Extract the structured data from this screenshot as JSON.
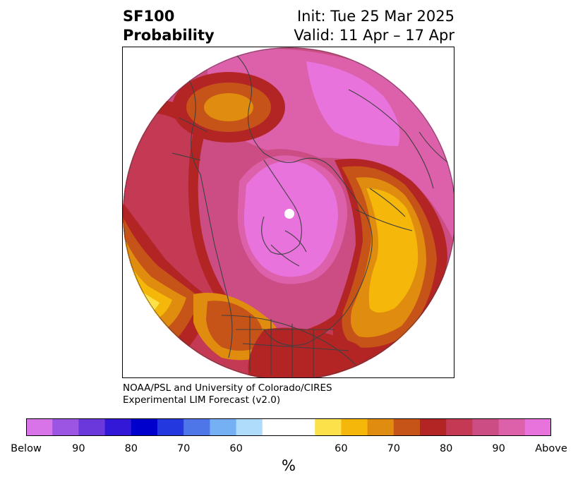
{
  "title": {
    "line1": "SF100",
    "line2": "Probability",
    "init": "Init: Tue 25 Mar 2025",
    "valid": "Valid: 11 Apr – 17 Apr"
  },
  "credit": {
    "line1": "NOAA/PSL and University of Colorado/CIRES",
    "line2": "Experimental LIM Forecast (v2.0)"
  },
  "colorbar": {
    "units": "%",
    "colors": [
      "#d874e8",
      "#9c55e3",
      "#6b38dc",
      "#3418d8",
      "#0000cd",
      "#2438e0",
      "#4e76e9",
      "#74b0f3",
      "#aedcfa",
      "#ffffff",
      "#ffffff",
      "#fde14a",
      "#f4b70a",
      "#e08d0f",
      "#c65318",
      "#b32424",
      "#c43a54",
      "#cc4d84",
      "#dc60aa",
      "#e873dc"
    ],
    "labels": [
      "Below",
      "90",
      "80",
      "70",
      "60",
      "60",
      "70",
      "80",
      "90",
      "Above"
    ]
  },
  "map_colors": {
    "above_outer": "#e873dc",
    "above_90": "#dc60aa",
    "above_85": "#cc4d84",
    "above_80": "#c43a54",
    "above_75": "#b32424",
    "above_70": "#c65318",
    "above_65": "#e08d0f",
    "above_60": "#f4b70a",
    "above_55": "#fde14a",
    "borders": "#404040"
  }
}
